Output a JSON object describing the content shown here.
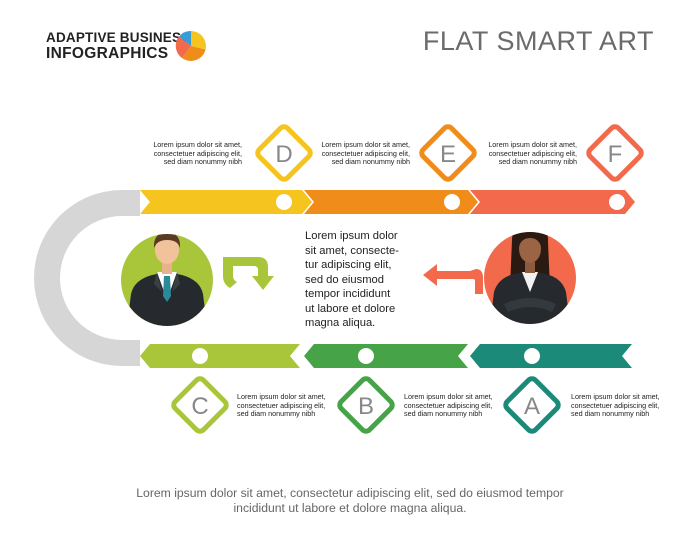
{
  "header": {
    "brand_line1": "ADAPTIVE BUSINESS",
    "brand_line2": "INFOGRAPHICS",
    "title": "FLAT SMART ART"
  },
  "colors": {
    "yellow": "#f5c41e",
    "orange": "#f08d1a",
    "coral": "#f26a4b",
    "lightgreen": "#a9c63b",
    "green": "#46a347",
    "teal": "#1b8a78",
    "gray": "#d6d6d6"
  },
  "steps": [
    {
      "letter": "D",
      "color": "#f5c41e",
      "text": [
        "Lorem ipsum dolor sit amet,",
        "consectetuer adipiscing elit,",
        "sed diam nonummy nibh"
      ]
    },
    {
      "letter": "E",
      "color": "#f08d1a",
      "text": [
        "Lorem ipsum dolor sit amet,",
        "consectetuer adipiscing elit,",
        "sed diam nonummy nibh"
      ]
    },
    {
      "letter": "F",
      "color": "#f26a4b",
      "text": [
        "Lorem ipsum dolor sit amet,",
        "consectetuer adipiscing elit,",
        "sed diam nonummy nibh"
      ]
    },
    {
      "letter": "C",
      "color": "#a9c63b",
      "text": [
        "Lorem ipsum dolor sit amet,",
        "consectetuer adipiscing elit,",
        "sed diam nonummy nibh"
      ]
    },
    {
      "letter": "B",
      "color": "#46a347",
      "text": [
        "Lorem ipsum dolor sit amet,",
        "consectetuer adipiscing elit,",
        "sed diam nonummy nibh"
      ]
    },
    {
      "letter": "A",
      "color": "#1b8a78",
      "text": [
        "Lorem ipsum dolor sit amet,",
        "consectetuer adipiscing elit,",
        "sed diam nonummy nibh"
      ]
    }
  ],
  "center_text": [
    "Lorem ipsum dolor",
    "sit amet, consecte-",
    "tur adipiscing elit,",
    "sed do eiusmod",
    "tempor incididunt",
    "ut labore et dolore",
    "magna aliqua."
  ],
  "footer": [
    "Lorem ipsum dolor sit amet, consectetur adipiscing elit, sed do eiusmod tempor",
    "incididunt ut labore et dolore magna aliqua."
  ],
  "icons": {
    "logo": "pie-chart-icon",
    "man": "businessman-icon",
    "woman": "businesswoman-icon",
    "arrow_right": "turn-right-arrow-icon",
    "arrow_left": "turn-left-arrow-icon"
  }
}
